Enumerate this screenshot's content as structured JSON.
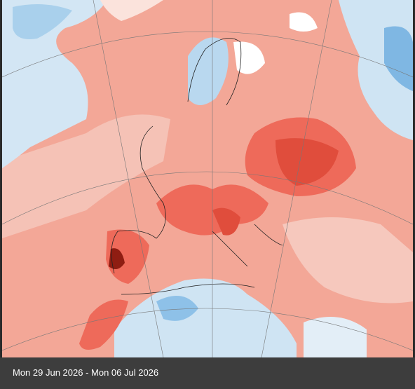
{
  "caption": "Mon 29 Jun 2026 - Mon 06 Jul 2026"
}
